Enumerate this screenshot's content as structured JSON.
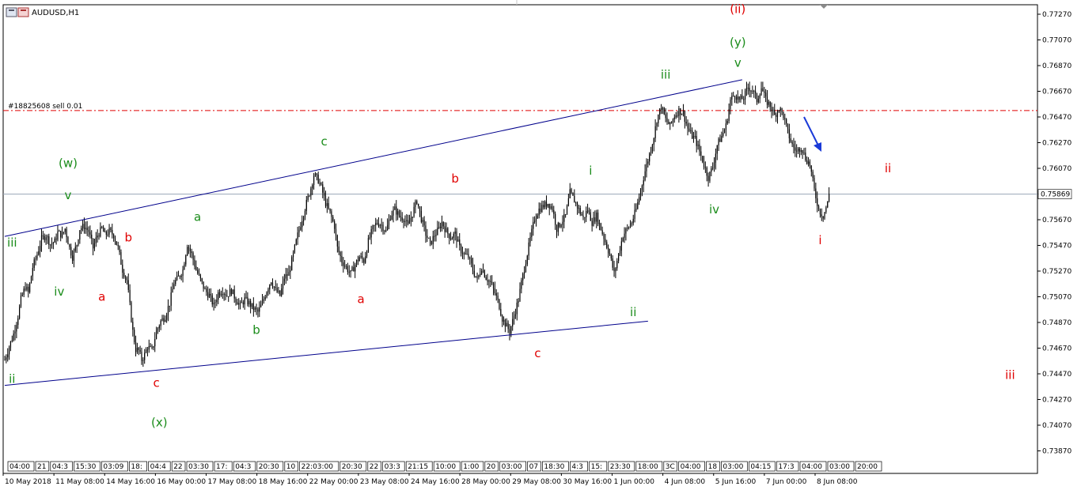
{
  "symbol_title": "AUDUSD,H1",
  "order_label": "#18825608 sell 0.01",
  "colors": {
    "background": "#ffffff",
    "candle": "#000000",
    "trendline": "#00008b",
    "red_labels": "#e00000",
    "green_labels": "#1a8c1a",
    "order_line": "#e00000",
    "price_line": "#9aa6b6",
    "arrow": "#1a3ad8"
  },
  "chart_data": {
    "type": "candlestick",
    "ylim": [
      0.7364,
      0.7737
    ],
    "y_ticks": [
      "0.77270",
      "0.77070",
      "0.76870",
      "0.76670",
      "0.76470",
      "0.76270",
      "0.76070",
      "0.75870",
      "0.75670",
      "0.75470",
      "0.75270",
      "0.75070",
      "0.74870",
      "0.74670",
      "0.74470",
      "0.74270",
      "0.74070",
      "0.73870"
    ],
    "x_ticks": [
      "10 May 2018",
      "11 May 08:00",
      "14 May 16:00",
      "16 May 00:00",
      "17 May 08:00",
      "18 May 16:00",
      "22 May 00:00",
      "23 May 08:00",
      "24 May 16:00",
      "28 May 00:00",
      "29 May 08:00",
      "30 May 16:00",
      "1 Jun 00:00",
      "4 Jun 08:00",
      "5 Jun 16:00",
      "7 Jun 00:00",
      "8 Jun 08:00"
    ],
    "current_price": "0.75869",
    "order_price": 0.7652,
    "path": [
      [
        0,
        0.7458
      ],
      [
        3,
        0.7468
      ],
      [
        6,
        0.7478
      ],
      [
        9,
        0.7492
      ],
      [
        11,
        0.7505
      ],
      [
        14,
        0.7515
      ],
      [
        16,
        0.751
      ],
      [
        19,
        0.753
      ],
      [
        22,
        0.754
      ],
      [
        25,
        0.7552
      ],
      [
        28,
        0.7555
      ],
      [
        31,
        0.7548
      ],
      [
        34,
        0.755
      ],
      [
        36,
        0.7557
      ],
      [
        39,
        0.7555
      ],
      [
        41,
        0.756
      ],
      [
        44,
        0.7545
      ],
      [
        46,
        0.7538
      ],
      [
        49,
        0.7548
      ],
      [
        51,
        0.756
      ],
      [
        54,
        0.7562
      ],
      [
        57,
        0.7558
      ],
      [
        60,
        0.7545
      ],
      [
        63,
        0.7555
      ],
      [
        66,
        0.756
      ],
      [
        68,
        0.7555
      ],
      [
        71,
        0.7558
      ],
      [
        74,
        0.7555
      ],
      [
        77,
        0.7545
      ],
      [
        80,
        0.7528
      ],
      [
        83,
        0.752
      ],
      [
        85,
        0.75
      ],
      [
        87,
        0.748
      ],
      [
        89,
        0.7466
      ],
      [
        91,
        0.7465
      ],
      [
        93,
        0.7458
      ],
      [
        95,
        0.7462
      ],
      [
        97,
        0.7468
      ],
      [
        100,
        0.7465
      ],
      [
        103,
        0.748
      ],
      [
        106,
        0.7488
      ],
      [
        109,
        0.7492
      ],
      [
        112,
        0.7502
      ],
      [
        115,
        0.7518
      ],
      [
        118,
        0.7522
      ],
      [
        121,
        0.7528
      ],
      [
        124,
        0.7548
      ],
      [
        127,
        0.754
      ],
      [
        130,
        0.7528
      ],
      [
        133,
        0.752
      ],
      [
        136,
        0.7512
      ],
      [
        139,
        0.7508
      ],
      [
        142,
        0.75
      ],
      [
        145,
        0.751
      ],
      [
        148,
        0.7512
      ],
      [
        151,
        0.7508
      ],
      [
        154,
        0.7512
      ],
      [
        157,
        0.7505
      ],
      [
        160,
        0.75
      ],
      [
        163,
        0.7505
      ],
      [
        166,
        0.7502
      ],
      [
        169,
        0.7498
      ],
      [
        172,
        0.7495
      ],
      [
        175,
        0.7502
      ],
      [
        178,
        0.7512
      ],
      [
        181,
        0.752
      ],
      [
        184,
        0.7512
      ],
      [
        187,
        0.7508
      ],
      [
        190,
        0.7522
      ],
      [
        193,
        0.7525
      ],
      [
        196,
        0.754
      ],
      [
        199,
        0.7555
      ],
      [
        202,
        0.7568
      ],
      [
        205,
        0.758
      ],
      [
        208,
        0.7592
      ],
      [
        210,
        0.7602
      ],
      [
        213,
        0.7598
      ],
      [
        215,
        0.7592
      ],
      [
        218,
        0.758
      ],
      [
        221,
        0.7572
      ],
      [
        224,
        0.7562
      ],
      [
        226,
        0.7545
      ],
      [
        229,
        0.7535
      ],
      [
        232,
        0.753
      ],
      [
        235,
        0.7525
      ],
      [
        238,
        0.7532
      ],
      [
        241,
        0.7538
      ],
      [
        244,
        0.7535
      ],
      [
        247,
        0.755
      ],
      [
        250,
        0.756
      ],
      [
        253,
        0.7565
      ],
      [
        256,
        0.7563
      ],
      [
        259,
        0.7558
      ],
      [
        262,
        0.757
      ],
      [
        265,
        0.7575
      ],
      [
        268,
        0.757
      ],
      [
        271,
        0.7568
      ],
      [
        274,
        0.7562
      ],
      [
        277,
        0.7572
      ],
      [
        280,
        0.7582
      ],
      [
        283,
        0.7568
      ],
      [
        286,
        0.7556
      ],
      [
        289,
        0.7548
      ],
      [
        292,
        0.7555
      ],
      [
        295,
        0.756
      ],
      [
        297,
        0.7565
      ],
      [
        300,
        0.7558
      ],
      [
        303,
        0.7553
      ],
      [
        306,
        0.7556
      ],
      [
        309,
        0.7545
      ],
      [
        312,
        0.754
      ],
      [
        315,
        0.7538
      ],
      [
        318,
        0.7528
      ],
      [
        321,
        0.752
      ],
      [
        324,
        0.753
      ],
      [
        327,
        0.7522
      ],
      [
        330,
        0.7518
      ],
      [
        333,
        0.751
      ],
      [
        336,
        0.75
      ],
      [
        338,
        0.749
      ],
      [
        341,
        0.7484
      ],
      [
        343,
        0.748
      ],
      [
        346,
        0.7492
      ],
      [
        349,
        0.7505
      ],
      [
        351,
        0.7518
      ],
      [
        354,
        0.7535
      ],
      [
        357,
        0.7552
      ],
      [
        360,
        0.7568
      ],
      [
        363,
        0.7575
      ],
      [
        366,
        0.7578
      ],
      [
        369,
        0.758
      ],
      [
        372,
        0.7576
      ],
      [
        375,
        0.756
      ],
      [
        378,
        0.7565
      ],
      [
        381,
        0.757
      ],
      [
        384,
        0.7588
      ],
      [
        387,
        0.7582
      ],
      [
        390,
        0.7575
      ],
      [
        393,
        0.7568
      ],
      [
        396,
        0.7575
      ],
      [
        399,
        0.7565
      ],
      [
        402,
        0.757
      ],
      [
        405,
        0.756
      ],
      [
        408,
        0.755
      ],
      [
        411,
        0.754
      ],
      [
        414,
        0.7525
      ],
      [
        417,
        0.754
      ],
      [
        420,
        0.7555
      ],
      [
        423,
        0.756
      ],
      [
        426,
        0.7565
      ],
      [
        429,
        0.7575
      ],
      [
        432,
        0.759
      ],
      [
        435,
        0.7605
      ],
      [
        438,
        0.7618
      ],
      [
        441,
        0.7632
      ],
      [
        443,
        0.7645
      ],
      [
        446,
        0.7655
      ],
      [
        449,
        0.7645
      ],
      [
        452,
        0.764
      ],
      [
        455,
        0.7648
      ],
      [
        458,
        0.7652
      ],
      [
        461,
        0.765
      ],
      [
        464,
        0.7638
      ],
      [
        467,
        0.7632
      ],
      [
        469,
        0.763
      ],
      [
        472,
        0.762
      ],
      [
        475,
        0.761
      ],
      [
        478,
        0.76
      ],
      [
        481,
        0.7608
      ],
      [
        484,
        0.7625
      ],
      [
        487,
        0.7632
      ],
      [
        490,
        0.764
      ],
      [
        493,
        0.766
      ],
      [
        496,
        0.7665
      ],
      [
        499,
        0.766
      ],
      [
        502,
        0.7662
      ],
      [
        505,
        0.767
      ],
      [
        508,
        0.7668
      ],
      [
        511,
        0.766
      ],
      [
        514,
        0.767
      ],
      [
        517,
        0.766
      ],
      [
        520,
        0.7656
      ],
      [
        523,
        0.7648
      ],
      [
        526,
        0.7654
      ],
      [
        529,
        0.7648
      ],
      [
        532,
        0.7635
      ],
      [
        535,
        0.7625
      ],
      [
        538,
        0.762
      ],
      [
        541,
        0.7624
      ],
      [
        544,
        0.7615
      ],
      [
        547,
        0.761
      ],
      [
        550,
        0.759
      ],
      [
        553,
        0.7575
      ],
      [
        556,
        0.757
      ],
      [
        559,
        0.758
      ],
      [
        560,
        0.7587
      ]
    ],
    "trendlines": [
      [
        [
          0,
          0.7554
        ],
        [
          501,
          0.7676
        ]
      ],
      [
        [
          0,
          0.7438
        ],
        [
          437,
          0.7488
        ]
      ]
    ],
    "wave_labels": [
      {
        "text": "(ii)",
        "i": 498,
        "p": 0.7728,
        "color": "red"
      },
      {
        "text": "(y)",
        "i": 498,
        "p": 0.7702,
        "color": "green"
      },
      {
        "text": "v",
        "i": 498,
        "p": 0.7686,
        "color": "green"
      },
      {
        "text": "iii",
        "i": 449,
        "p": 0.7677,
        "color": "green"
      },
      {
        "text": "c",
        "i": 217,
        "p": 0.7625,
        "color": "green"
      },
      {
        "text": "(w)",
        "i": 43,
        "p": 0.7608,
        "color": "green"
      },
      {
        "text": "v",
        "i": 43,
        "p": 0.7583,
        "color": "green"
      },
      {
        "text": "iii",
        "i": 5,
        "p": 0.7546,
        "color": "green"
      },
      {
        "text": "iv",
        "i": 37,
        "p": 0.7508,
        "color": "green"
      },
      {
        "text": "ii",
        "i": 5,
        "p": 0.744,
        "color": "green"
      },
      {
        "text": "b",
        "i": 84,
        "p": 0.755,
        "color": "red"
      },
      {
        "text": "a",
        "i": 66,
        "p": 0.7504,
        "color": "red"
      },
      {
        "text": "c",
        "i": 103,
        "p": 0.7437,
        "color": "red"
      },
      {
        "text": "(x)",
        "i": 105,
        "p": 0.7406,
        "color": "green"
      },
      {
        "text": "a",
        "i": 131,
        "p": 0.7566,
        "color": "green"
      },
      {
        "text": "b",
        "i": 171,
        "p": 0.7478,
        "color": "green"
      },
      {
        "text": "b",
        "i": 306,
        "p": 0.7596,
        "color": "red"
      },
      {
        "text": "a",
        "i": 242,
        "p": 0.7502,
        "color": "red"
      },
      {
        "text": "c",
        "i": 362,
        "p": 0.746,
        "color": "red"
      },
      {
        "text": "i",
        "i": 398,
        "p": 0.7602,
        "color": "green"
      },
      {
        "text": "ii",
        "i": 427,
        "p": 0.7492,
        "color": "green"
      },
      {
        "text": "iv",
        "i": 482,
        "p": 0.7572,
        "color": "green"
      },
      {
        "text": "i",
        "i": 554,
        "p": 0.7548,
        "color": "red"
      },
      {
        "text": "ii",
        "i": 600,
        "p": 0.7604,
        "color": "red"
      },
      {
        "text": "iii",
        "i": 683,
        "p": 0.7443,
        "color": "red"
      }
    ]
  },
  "period_boxes": [
    "04:00",
    "21",
    "04:3",
    "15:30",
    "03:09",
    "18:",
    "04:4",
    "22",
    "03:30",
    "17:",
    "04:3",
    "20:30",
    "10",
    "22:03:00",
    "20:30",
    "22",
    "03:3",
    "21:15",
    "10:00",
    "1:00",
    "20",
    "03:00",
    "07",
    "18:30",
    "4:3",
    "15:",
    "23:30",
    "18:00",
    "3C",
    "04:00",
    "18",
    "03:00",
    "04:15",
    "17:3",
    "04:00",
    "03:00",
    "20:00"
  ]
}
